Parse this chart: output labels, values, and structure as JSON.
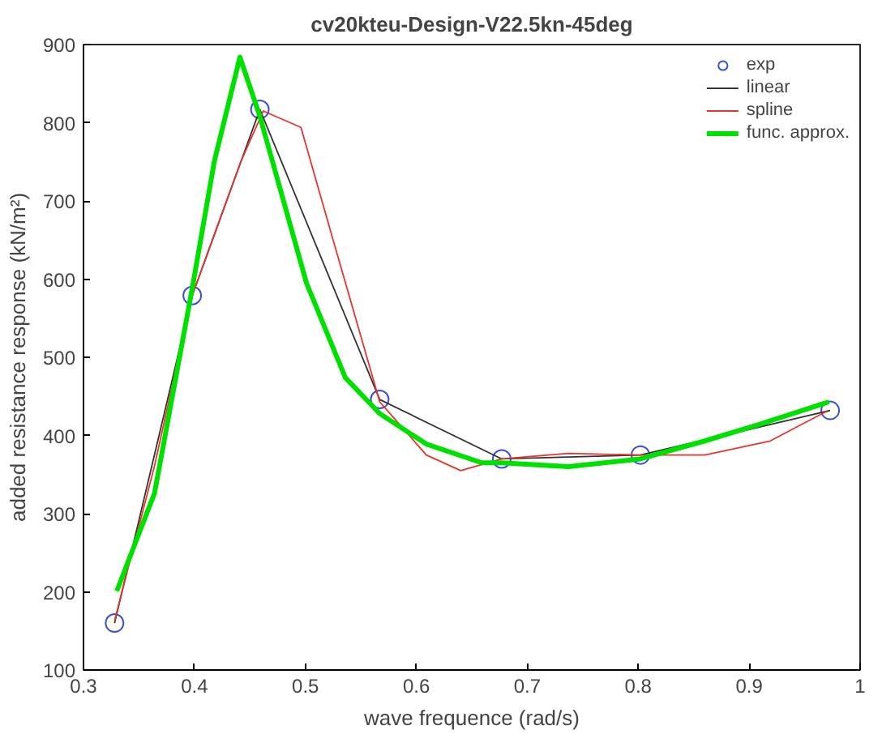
{
  "chart_data": {
    "type": "line",
    "title": "cv20kteu-Design-V22.5kn-45deg",
    "xlabel": "wave frequence (rad/s)",
    "ylabel": "added resistance response (kN/m²)",
    "xlim": [
      0.3,
      1
    ],
    "ylim": [
      100,
      900
    ],
    "xticks": [
      0.3,
      0.4,
      0.5,
      0.6,
      0.7,
      0.8,
      0.9,
      1
    ],
    "yticks": [
      100,
      200,
      300,
      400,
      500,
      600,
      700,
      800,
      900
    ],
    "legend": "top right",
    "grid": false,
    "series": [
      {
        "name": "exp",
        "type": "scatter",
        "marker": "circle",
        "color": "#3b4fe0",
        "x": [
          0.328,
          0.398,
          0.459,
          0.567,
          0.677,
          0.802,
          0.973
        ],
        "values": [
          160,
          579,
          817,
          446,
          370,
          375,
          432
        ]
      },
      {
        "name": "linear",
        "color": "#333333",
        "x": [
          0.328,
          0.398,
          0.459,
          0.567,
          0.677,
          0.802,
          0.973
        ],
        "values": [
          160,
          579,
          817,
          446,
          370,
          375,
          432
        ]
      },
      {
        "name": "spline",
        "color": "#e8342c",
        "x": [
          0.328,
          0.364,
          0.398,
          0.442,
          0.462,
          0.496,
          0.526,
          0.567,
          0.609,
          0.64,
          0.677,
          0.737,
          0.802,
          0.86,
          0.919,
          0.97
        ],
        "values": [
          163,
          361,
          579,
          751,
          815,
          794,
          645,
          443,
          375,
          355,
          370,
          377,
          375,
          375,
          393,
          431
        ]
      },
      {
        "name": "func. approx.",
        "color": "#00e000",
        "x": [
          0.33,
          0.364,
          0.398,
          0.418,
          0.441,
          0.459,
          0.501,
          0.536,
          0.567,
          0.609,
          0.659,
          0.677,
          0.737,
          0.802,
          0.86,
          0.909,
          0.972
        ],
        "values": [
          201,
          326,
          588,
          751,
          884,
          808,
          595,
          474,
          428,
          389,
          365,
          365,
          360,
          370,
          393,
          414,
          443
        ]
      }
    ]
  }
}
